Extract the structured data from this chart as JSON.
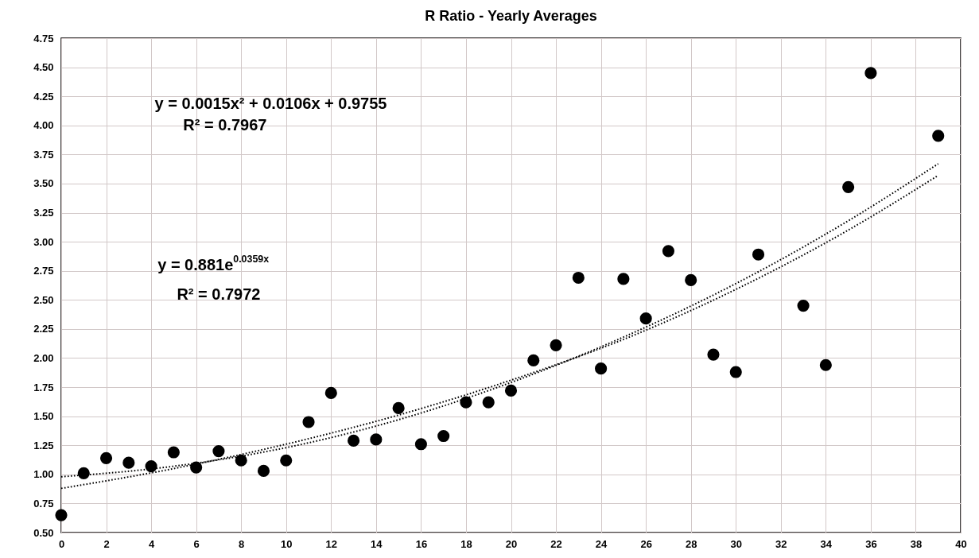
{
  "chart_data": {
    "type": "scatter",
    "title": "R Ratio - Yearly Averages",
    "x": [
      0,
      1,
      2,
      3,
      4,
      5,
      6,
      7,
      8,
      9,
      10,
      11,
      12,
      13,
      14,
      15,
      16,
      17,
      18,
      19,
      20,
      21,
      22,
      23,
      24,
      25,
      26,
      27,
      28,
      29,
      30,
      31,
      33,
      34,
      35,
      36,
      39
    ],
    "series": [
      {
        "type": "scatter",
        "color": "#000000",
        "marker": "circle",
        "values": [
          0.65,
          1.01,
          1.14,
          1.1,
          1.07,
          1.19,
          1.06,
          1.2,
          1.12,
          1.03,
          1.12,
          1.45,
          1.7,
          1.29,
          1.3,
          1.57,
          1.26,
          1.33,
          1.62,
          1.62,
          1.72,
          1.98,
          2.11,
          2.69,
          1.91,
          2.68,
          2.34,
          2.92,
          2.67,
          2.03,
          1.88,
          2.89,
          2.45,
          1.94,
          3.47,
          4.45,
          3.91
        ]
      },
      {
        "type": "line",
        "color": "#000000",
        "line_style": "dotted",
        "x": [
          0,
          5,
          10,
          15,
          20,
          25,
          30,
          35,
          39
        ],
        "values": [
          0.98,
          1.07,
          1.23,
          1.47,
          1.79,
          2.18,
          2.64,
          3.18,
          3.67
        ]
      },
      {
        "type": "line",
        "color": "#000000",
        "line_style": "dotted",
        "x": [
          0,
          5,
          10,
          15,
          20,
          25,
          30,
          35,
          39
        ],
        "values": [
          0.88,
          1.05,
          1.26,
          1.51,
          1.81,
          2.16,
          2.59,
          3.1,
          3.57
        ]
      }
    ],
    "annotations": [
      "y = 0.0015x² + 0.0106x + 0.9755",
      "R² = 0.7967",
      "y = 0.881e$^{0.0359x}$",
      "R² = 0.7972"
    ],
    "xlim": [
      0,
      40
    ],
    "xticks": [
      0,
      2,
      4,
      6,
      8,
      10,
      12,
      14,
      16,
      18,
      20,
      22,
      24,
      26,
      28,
      30,
      32,
      34,
      36,
      38,
      40
    ],
    "ylim": [
      0.5,
      4.75
    ],
    "yticks": [
      {
        "value": 0.5,
        "label": "0.50"
      },
      {
        "value": 0.75,
        "label": "0.75"
      },
      {
        "value": 1,
        "label": "1.00"
      },
      {
        "value": 1.25,
        "label": "1.25"
      },
      {
        "value": 1.5,
        "label": "1.50"
      },
      {
        "value": 1.75,
        "label": "1.75"
      },
      {
        "value": 2,
        "label": "2.00"
      },
      {
        "value": 2.25,
        "label": "2.25"
      },
      {
        "value": 2.5,
        "label": "2.50"
      },
      {
        "value": 2.75,
        "label": "2.75"
      },
      {
        "value": 3,
        "label": "3.00"
      },
      {
        "value": 3.25,
        "label": "3.25"
      },
      {
        "value": 3.5,
        "label": "3.50"
      },
      {
        "value": 3.75,
        "label": "3.75"
      },
      {
        "value": 4,
        "label": "4.00"
      },
      {
        "value": 4.25,
        "label": "4.25"
      },
      {
        "value": 4.5,
        "label": "4.50"
      },
      {
        "value": 4.75,
        "label": "4.75"
      }
    ],
    "grid": true
  }
}
